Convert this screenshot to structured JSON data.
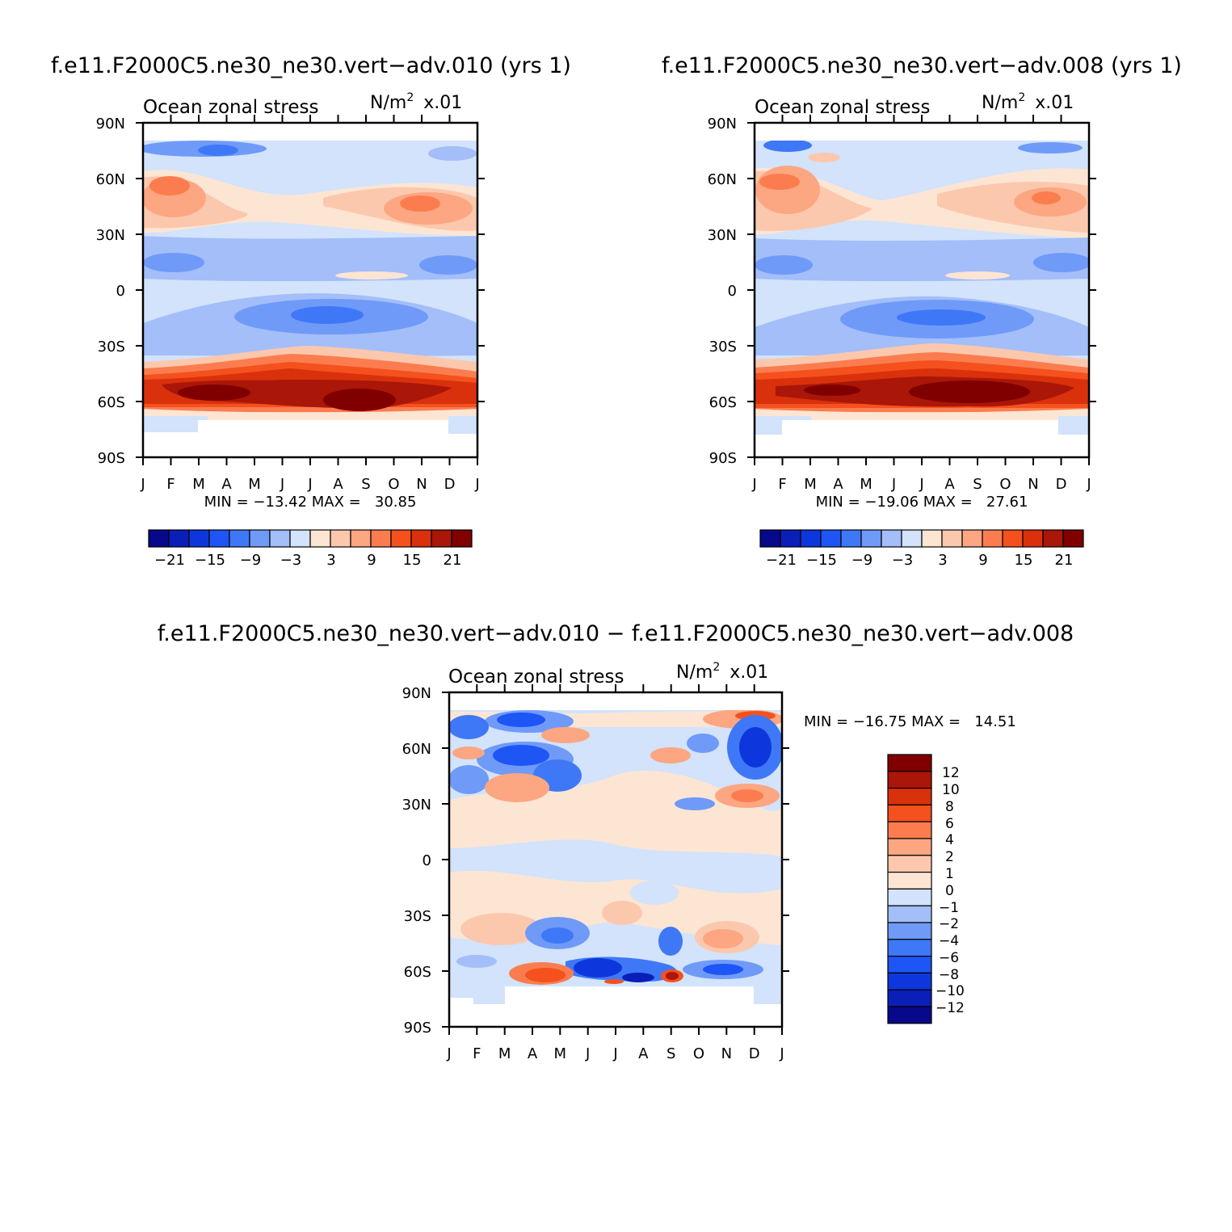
{
  "chart_data": [
    {
      "type": "heatmap",
      "run_title": "f.e11.F2000C5.ne30_ne30.vert−adv.010 (yrs 1)",
      "subtitle": "Ocean zonal stress",
      "units": "N/m",
      "units_exp": "2",
      "units_scale": "x.01",
      "x_ticks": [
        "J",
        "F",
        "M",
        "A",
        "M",
        "J",
        "J",
        "A",
        "S",
        "O",
        "N",
        "D",
        "J"
      ],
      "y_ticks": [
        "90N",
        "60N",
        "30N",
        "0",
        "30S",
        "60S",
        "90S"
      ],
      "stats": "MIN = −13.42 MAX =   30.85",
      "legend_labels": [
        "−21",
        "−15",
        "−9",
        "−3",
        "3",
        "9",
        "15",
        "21"
      ]
    },
    {
      "type": "heatmap",
      "run_title": "f.e11.F2000C5.ne30_ne30.vert−adv.008 (yrs 1)",
      "subtitle": "Ocean zonal stress",
      "units": "N/m",
      "units_exp": "2",
      "units_scale": "x.01",
      "x_ticks": [
        "J",
        "F",
        "M",
        "A",
        "M",
        "J",
        "J",
        "A",
        "S",
        "O",
        "N",
        "D",
        "J"
      ],
      "y_ticks": [
        "90N",
        "60N",
        "30N",
        "0",
        "30S",
        "60S",
        "90S"
      ],
      "stats": "MIN = −19.06 MAX =   27.61",
      "legend_labels": [
        "−21",
        "−15",
        "−9",
        "−3",
        "3",
        "9",
        "15",
        "21"
      ]
    },
    {
      "type": "heatmap",
      "run_title": "f.e11.F2000C5.ne30_ne30.vert−adv.010 − f.e11.F2000C5.ne30_ne30.vert−adv.008",
      "subtitle": "Ocean zonal stress",
      "units": "N/m",
      "units_exp": "2",
      "units_scale": "x.01",
      "x_ticks": [
        "J",
        "F",
        "M",
        "A",
        "M",
        "J",
        "J",
        "A",
        "S",
        "O",
        "N",
        "D",
        "J"
      ],
      "y_ticks": [
        "90N",
        "60N",
        "30N",
        "0",
        "30S",
        "60S",
        "90S"
      ],
      "stats": "MIN = −16.75 MAX =   14.51",
      "legend_labels": [
        "12",
        "10",
        "8",
        "6",
        "4",
        "2",
        "1",
        "0",
        "−1",
        "−2",
        "−4",
        "−6",
        "−8",
        "−10",
        "−12"
      ]
    }
  ],
  "colors": {
    "palette": [
      "#08088a",
      "#0a1fb8",
      "#0d37dd",
      "#1e55f5",
      "#3f78f7",
      "#6f9af8",
      "#a3bef9",
      "#d2e3fb",
      "#fde5d4",
      "#fcc8ad",
      "#fca682",
      "#fb7d4f",
      "#f4511e",
      "#d9310c",
      "#aa1608",
      "#800000"
    ],
    "diff_palette": [
      "#08088a",
      "#0a1fb8",
      "#0d37dd",
      "#1e55f5",
      "#3f78f7",
      "#6f9af8",
      "#a3bef9",
      "#d2e3fb",
      "#fde5d4",
      "#fcc8ad",
      "#fca682",
      "#fb7d4f",
      "#f4511e",
      "#d9310c",
      "#aa1608",
      "#800000"
    ]
  }
}
